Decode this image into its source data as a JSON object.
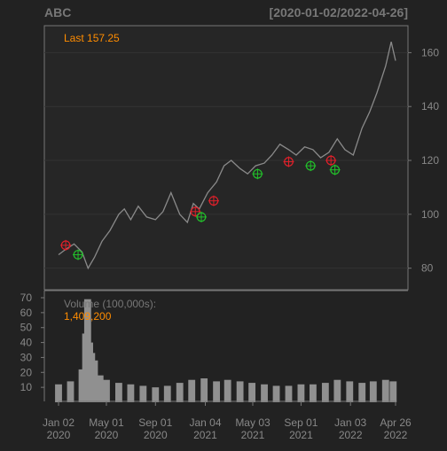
{
  "chart_data": [
    {
      "type": "line",
      "title": "ABC",
      "date_range_label": "[2020-01-02/2022-04-26]",
      "last_label": "Last 157.25",
      "ylim": [
        72,
        170
      ],
      "y_ticks": [
        80,
        100,
        120,
        140,
        160
      ],
      "grid": true,
      "series": [
        {
          "x": [
            "2020-01-02",
            "2020-01-20",
            "2020-02-10",
            "2020-03-01",
            "2020-03-16",
            "2020-04-01",
            "2020-04-20",
            "2020-05-10",
            "2020-06-01",
            "2020-06-15",
            "2020-07-01",
            "2020-07-20",
            "2020-08-10",
            "2020-09-01",
            "2020-09-20",
            "2020-10-10",
            "2020-11-01",
            "2020-11-20",
            "2020-12-05",
            "2020-12-20",
            "2021-01-10",
            "2021-02-01",
            "2021-02-20",
            "2021-03-10",
            "2021-04-01",
            "2021-04-20",
            "2021-05-10",
            "2021-06-01",
            "2021-06-20",
            "2021-07-10",
            "2021-08-01",
            "2021-08-20",
            "2021-09-10",
            "2021-10-01",
            "2021-10-20",
            "2021-11-10",
            "2021-12-01",
            "2021-12-20",
            "2022-01-10",
            "2022-02-01",
            "2022-02-20",
            "2022-03-10",
            "2022-04-01",
            "2022-04-15",
            "2022-04-26"
          ],
          "values": [
            85,
            87,
            89,
            86,
            80,
            84,
            90,
            94,
            100,
            102,
            98,
            103,
            99,
            98,
            101,
            108,
            100,
            97,
            104,
            102,
            108,
            112,
            118,
            120,
            117,
            115,
            118,
            119,
            122,
            126,
            124,
            122,
            125,
            124,
            121,
            123,
            128,
            124,
            122,
            132,
            138,
            145,
            155,
            164,
            157
          ]
        }
      ],
      "markers": [
        {
          "x": "2020-01-20",
          "y": 88.5,
          "type": "sell"
        },
        {
          "x": "2020-02-20",
          "y": 85,
          "type": "buy"
        },
        {
          "x": "2020-12-10",
          "y": 101,
          "type": "sell"
        },
        {
          "x": "2020-12-25",
          "y": 99,
          "type": "buy"
        },
        {
          "x": "2021-01-25",
          "y": 105,
          "type": "sell"
        },
        {
          "x": "2021-05-15",
          "y": 115,
          "type": "buy"
        },
        {
          "x": "2021-08-01",
          "y": 119.5,
          "type": "sell"
        },
        {
          "x": "2021-09-25",
          "y": 118,
          "type": "buy"
        },
        {
          "x": "2021-11-15",
          "y": 120,
          "type": "sell"
        },
        {
          "x": "2021-11-25",
          "y": 116.5,
          "type": "buy"
        }
      ],
      "colors": {
        "background": "#222222",
        "line": "#888888",
        "sell": "#e0202a",
        "buy": "#22c02a",
        "accent": "#ff8c00"
      }
    },
    {
      "type": "bar",
      "title": "Volume (100,000s):",
      "last_value_label": "1,409,200",
      "ylim": [
        0,
        70
      ],
      "y_ticks": [
        10,
        20,
        30,
        40,
        50,
        60,
        70
      ],
      "grid": false,
      "series": [
        {
          "x": [
            "2020-01-02",
            "2020-02-01",
            "2020-03-01",
            "2020-03-10",
            "2020-03-15",
            "2020-03-20",
            "2020-03-25",
            "2020-04-01",
            "2020-04-15",
            "2020-05-01",
            "2020-06-01",
            "2020-07-01",
            "2020-08-01",
            "2020-09-01",
            "2020-10-01",
            "2020-11-01",
            "2020-12-01",
            "2021-01-01",
            "2021-02-01",
            "2021-03-01",
            "2021-04-01",
            "2021-05-01",
            "2021-06-01",
            "2021-07-01",
            "2021-08-01",
            "2021-09-01",
            "2021-10-01",
            "2021-11-01",
            "2021-12-01",
            "2022-01-01",
            "2022-02-01",
            "2022-03-01",
            "2022-04-01",
            "2022-04-20"
          ],
          "values": [
            12,
            14,
            22,
            46,
            69,
            40,
            33,
            28,
            18,
            15,
            13,
            12,
            11,
            10,
            11,
            13,
            15,
            16,
            14,
            15,
            14,
            13,
            12,
            11,
            11,
            12,
            12,
            13,
            15,
            14,
            13,
            14,
            15,
            14
          ]
        }
      ]
    }
  ],
  "x_axis": {
    "ticks": [
      {
        "date": "2020-01-02",
        "line1": "Jan 02",
        "line2": "2020"
      },
      {
        "date": "2020-05-01",
        "line1": "May 01",
        "line2": "2020"
      },
      {
        "date": "2020-09-01",
        "line1": "Sep 01",
        "line2": "2020"
      },
      {
        "date": "2021-01-04",
        "line1": "Jan 04",
        "line2": "2021"
      },
      {
        "date": "2021-05-03",
        "line1": "May 03",
        "line2": "2021"
      },
      {
        "date": "2021-09-01",
        "line1": "Sep 01",
        "line2": "2021"
      },
      {
        "date": "2022-01-03",
        "line1": "Jan 03",
        "line2": "2022"
      },
      {
        "date": "2022-04-26",
        "line1": "Apr 26",
        "line2": "2022"
      }
    ],
    "start": "2020-01-02",
    "end": "2022-04-26"
  }
}
